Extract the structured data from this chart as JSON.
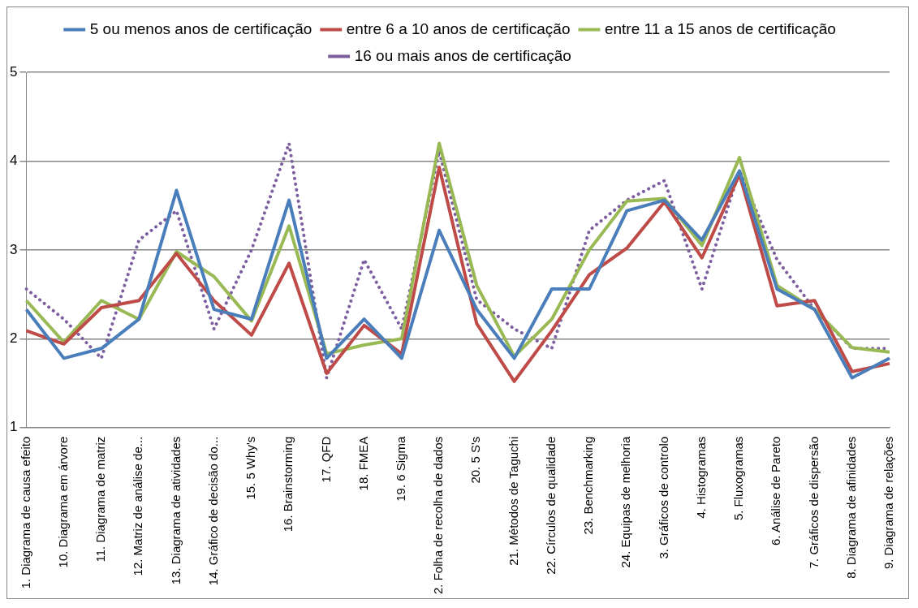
{
  "chart_data": {
    "type": "line",
    "categories": [
      "1. Diagrama de causa efeito",
      "10. Diagrama em árvore",
      "11. Diagrama de matriz",
      "12. Matriz de análise de...",
      "13. Diagrama de atividades",
      "14. Gráfico de decisão do...",
      "15. 5 Why's",
      "16. Brainstorming",
      "17. QFD",
      "18. FMEA",
      "19. 6 Sigma",
      "2. Folha de recolha de dados",
      "20. 5 S's",
      "21. Métodos de Taguchi",
      "22. Círculos de qualidade",
      "23. Benchmarking",
      "24. Equipas de melhoria",
      "3. Gráficos de controlo",
      "4. Histogramas",
      "5. Fluxogramas",
      "6. Análise de Pareto",
      "7. Gráficos de dispersão",
      "8. Diagrama de afinidades",
      "9. Diagrama de relações"
    ],
    "series": [
      {
        "name": "5 ou menos anos de certificação",
        "color": "#4a7ebb",
        "line_style": "solid",
        "values": [
          2.33,
          1.78,
          1.89,
          2.22,
          3.67,
          2.33,
          2.22,
          3.56,
          1.78,
          2.22,
          1.78,
          3.22,
          2.33,
          1.78,
          2.56,
          2.56,
          3.44,
          3.56,
          3.11,
          3.89,
          2.56,
          2.33,
          1.56,
          1.78
        ]
      },
      {
        "name": "entre 6 a 10 anos de certificação",
        "color": "#be4b48",
        "line_style": "solid",
        "values": [
          2.09,
          1.94,
          2.35,
          2.43,
          2.96,
          2.43,
          2.04,
          2.85,
          1.61,
          2.15,
          1.83,
          3.93,
          2.17,
          1.52,
          2.09,
          2.72,
          3.02,
          3.54,
          2.91,
          3.85,
          2.37,
          2.43,
          1.63,
          1.72
        ]
      },
      {
        "name": "entre 11 a 15 anos de certificação",
        "color": "#98b954",
        "line_style": "solid",
        "values": [
          2.43,
          1.96,
          2.43,
          2.22,
          2.98,
          2.7,
          2.2,
          3.27,
          1.83,
          1.93,
          2.0,
          4.2,
          2.6,
          1.8,
          2.22,
          3.0,
          3.55,
          3.58,
          3.05,
          4.04,
          2.6,
          2.33,
          1.9,
          1.85
        ]
      },
      {
        "name": "16 ou mais anos de certificação",
        "color": "#7d5fa0",
        "line_style": "dotted",
        "values": [
          2.56,
          2.22,
          1.78,
          3.11,
          3.44,
          2.11,
          3.0,
          4.2,
          1.56,
          2.89,
          2.11,
          4.11,
          2.44,
          2.11,
          1.89,
          3.22,
          3.56,
          3.78,
          2.56,
          3.89,
          2.89,
          2.33,
          1.89,
          1.89
        ]
      }
    ],
    "ylim": [
      1,
      5
    ],
    "yticks": [
      1,
      2,
      3,
      4,
      5
    ],
    "grid": "y",
    "legend": "top",
    "marker": "none"
  }
}
